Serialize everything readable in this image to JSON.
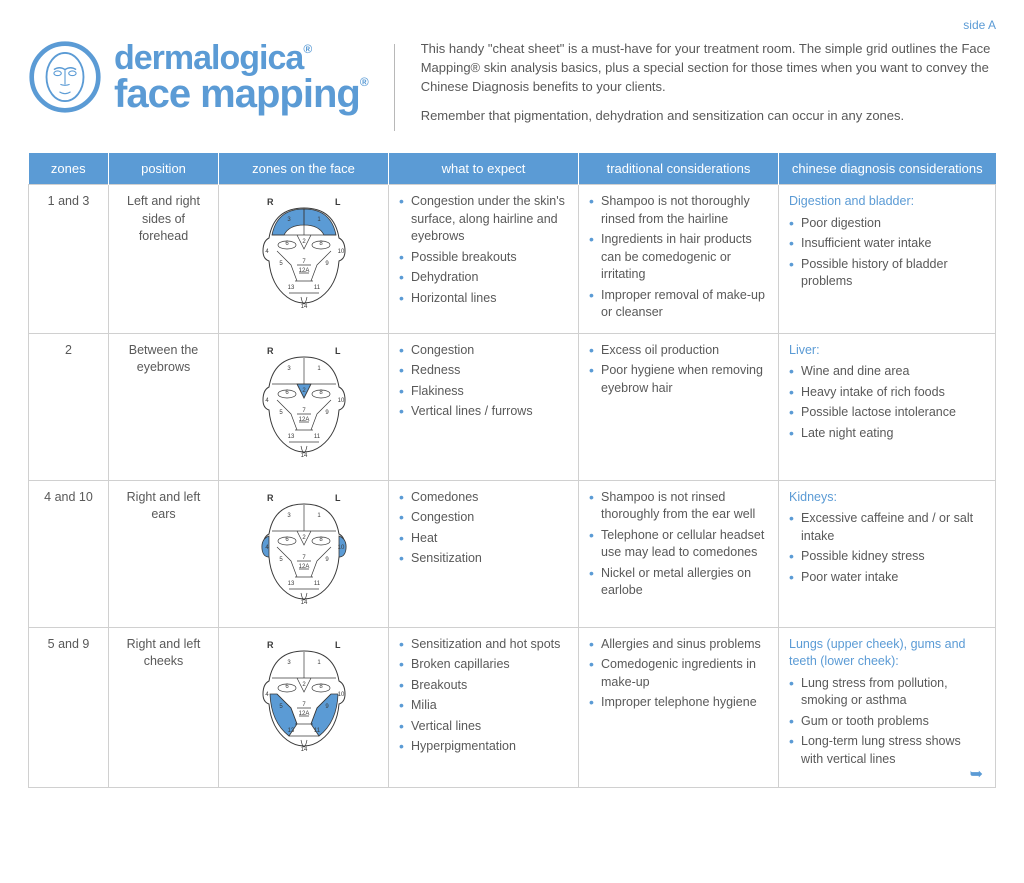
{
  "side_label": "side A",
  "brand": {
    "line1": "dermalogica",
    "line2": "face mapping"
  },
  "intro": {
    "p1": "This handy \"cheat sheet\" is a must-have for your treatment room. The simple grid outlines the Face Mapping® skin analysis basics, plus a special section for those times when you want to convey the Chinese Diagnosis benefits to your clients.",
    "p2": "Remember that pigmentation, dehydration and sensitization can occur in any zones."
  },
  "colors": {
    "brand_blue": "#5b9bd5",
    "text_gray": "#595959",
    "border_gray": "#d0d0d0",
    "face_fill": "#5b9bd5",
    "face_stroke": "#3a3a3a"
  },
  "headers": {
    "zones": "zones",
    "position": "position",
    "face": "zones on the face",
    "expect": "what to expect",
    "traditional": "traditional considerations",
    "chinese": "chinese diagnosis considerations"
  },
  "rows": [
    {
      "zone": "1 and 3",
      "position": "Left and right sides of forehead",
      "highlight": "forehead",
      "expect": [
        "Congestion under the skin's surface, along hairline and eyebrows",
        "Possible breakouts",
        "Dehydration",
        "Horizontal lines"
      ],
      "traditional": [
        "Shampoo is not thoroughly rinsed from the hairline",
        "Ingredients in hair products can be comedogenic or irritating",
        "Improper removal of make-up or cleanser"
      ],
      "chinese_title": "Digestion and bladder:",
      "chinese": [
        "Poor digestion",
        "Insufficient water intake",
        "Possible history of bladder problems"
      ]
    },
    {
      "zone": "2",
      "position": "Between the eyebrows",
      "highlight": "glabella",
      "expect": [
        "Congestion",
        "Redness",
        "Flakiness",
        "Vertical lines / furrows"
      ],
      "traditional": [
        "Excess oil production",
        "Poor hygiene when removing eyebrow hair"
      ],
      "chinese_title": "Liver:",
      "chinese": [
        "Wine and dine area",
        "Heavy intake of rich foods",
        "Possible lactose intolerance",
        "Late night eating"
      ]
    },
    {
      "zone": "4 and 10",
      "position": "Right and left ears",
      "highlight": "ears",
      "expect": [
        "Comedones",
        "Congestion",
        "Heat",
        "Sensitization"
      ],
      "traditional": [
        "Shampoo is not rinsed thoroughly from the ear well",
        "Telephone or cellular headset use may lead to comedones",
        "Nickel or metal allergies on earlobe"
      ],
      "chinese_title": "Kidneys:",
      "chinese": [
        "Excessive caffeine and / or salt intake",
        "Possible kidney stress",
        "Poor water intake"
      ]
    },
    {
      "zone": "5 and 9",
      "position": "Right and left cheeks",
      "highlight": "cheeks",
      "expect": [
        "Sensitization and hot spots",
        "Broken capillaries",
        "Breakouts",
        "Milia",
        "Vertical lines",
        "Hyperpigmentation"
      ],
      "traditional": [
        "Allergies and sinus problems",
        "Comedogenic ingredients in make-up",
        "Improper telephone hygiene"
      ],
      "chinese_title": "Lungs (upper cheek), gums and teeth (lower cheek):",
      "chinese": [
        "Lung stress from pollution, smoking or asthma",
        "Gum or tooth problems",
        "Long-term lung stress shows with vertical lines"
      ]
    }
  ],
  "face_labels": {
    "R": "R",
    "L": "L"
  },
  "zone_numbers": [
    "1",
    "2",
    "3",
    "4",
    "5",
    "6",
    "7",
    "8",
    "9",
    "10",
    "11",
    "12A",
    "13",
    "14"
  ]
}
